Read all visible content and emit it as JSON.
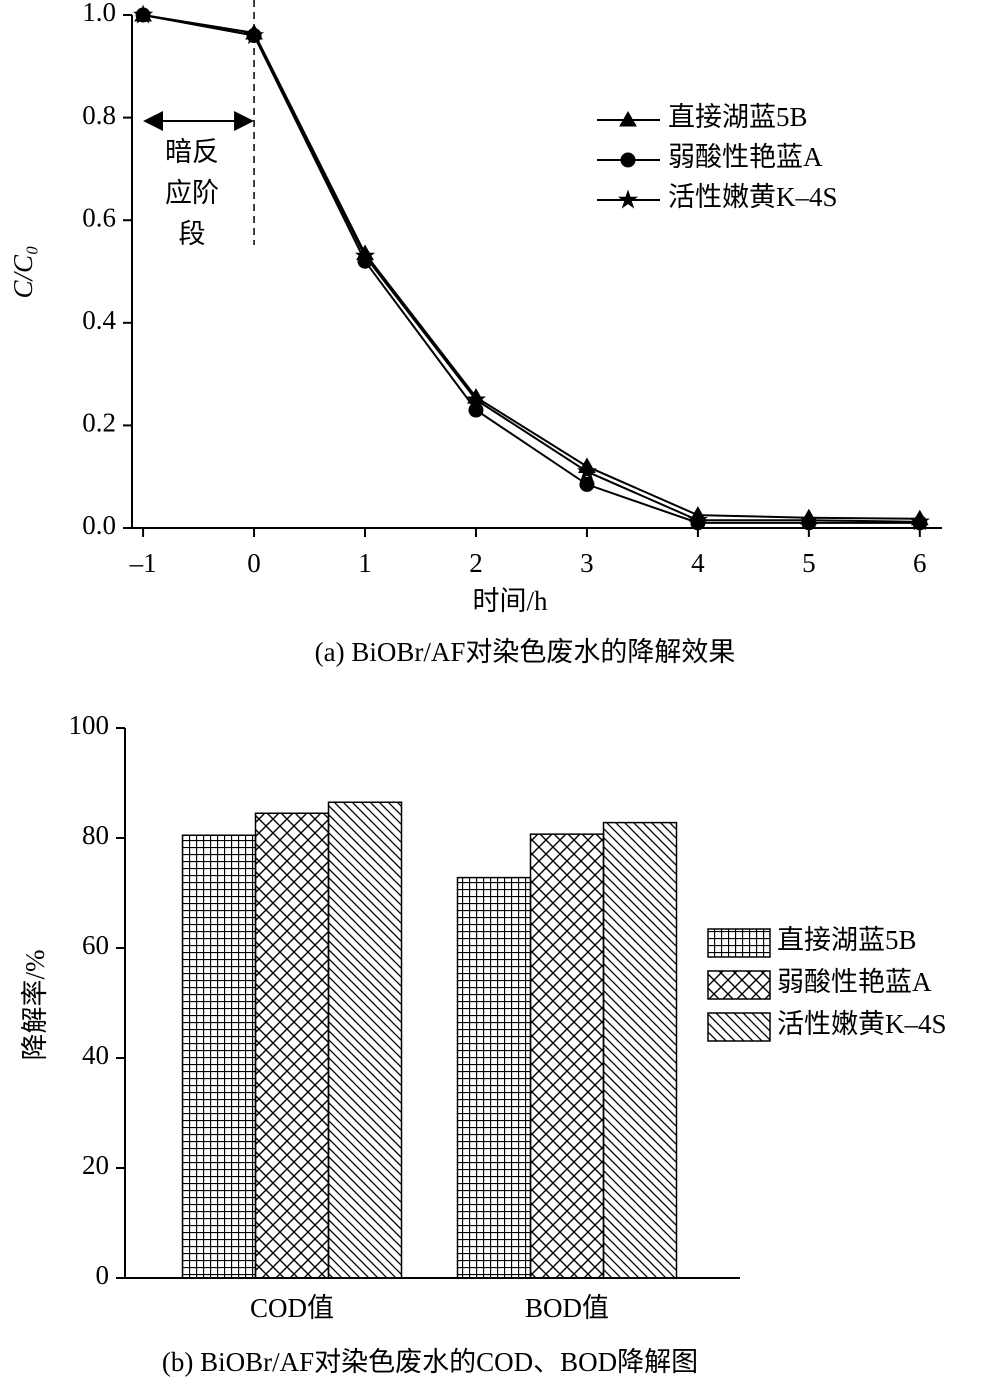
{
  "chart_data": [
    {
      "type": "line",
      "caption": "(a) BiOBr/AF对染色废水的降解效果",
      "xlabel": "时间/h",
      "ylabel": "C/C₀",
      "annotation": [
        "暗反",
        "应阶",
        "段"
      ],
      "x": [
        -1,
        0,
        1,
        2,
        3,
        4,
        5,
        6
      ],
      "series": [
        {
          "name": "直接湖蓝5B",
          "color": "#000000",
          "marker": "triangle",
          "values": [
            1.0,
            0.965,
            0.535,
            0.255,
            0.12,
            0.025,
            0.02,
            0.018
          ]
        },
        {
          "name": "弱酸性艳蓝A",
          "color": "#000000",
          "marker": "circle",
          "values": [
            1.0,
            0.96,
            0.52,
            0.23,
            0.085,
            0.01,
            0.01,
            0.01
          ]
        },
        {
          "name": "活性嫩黄K–4S",
          "color": "#000000",
          "marker": "star",
          "values": [
            1.0,
            0.96,
            0.53,
            0.25,
            0.11,
            0.015,
            0.015,
            0.012
          ]
        }
      ],
      "xlim": [
        -1.1,
        6.2
      ],
      "xticks": [
        {
          "value": -1,
          "label": "–1"
        },
        0,
        1,
        2,
        3,
        4,
        5,
        6
      ],
      "ylim": [
        0,
        1
      ],
      "yticks": [
        {
          "value": 0,
          "label": "0.0"
        },
        0.2,
        0.4,
        0.6,
        0.8,
        {
          "value": 1,
          "label": "1.0"
        }
      ],
      "legend": "upper right"
    },
    {
      "type": "bar",
      "caption": "(b) BiOBr/AF对染色废水的COD、BOD降解图",
      "ylabel": "降解率/%",
      "categories": [
        "COD值",
        "BOD值"
      ],
      "series": [
        {
          "name": "直接湖蓝5B",
          "color": "#000000",
          "pattern": "grid",
          "values": [
            80.5,
            72.8
          ]
        },
        {
          "name": "弱酸性艳蓝A",
          "color": "#000000",
          "pattern": "cross",
          "values": [
            84.5,
            80.7
          ]
        },
        {
          "name": "活性嫩黄K–4S",
          "color": "#000000",
          "pattern": "diagonal",
          "values": [
            86.5,
            82.8
          ]
        }
      ],
      "ylim": [
        0,
        100
      ],
      "yticks": [
        0,
        20,
        40,
        60,
        80,
        100
      ],
      "legend": "right"
    }
  ]
}
